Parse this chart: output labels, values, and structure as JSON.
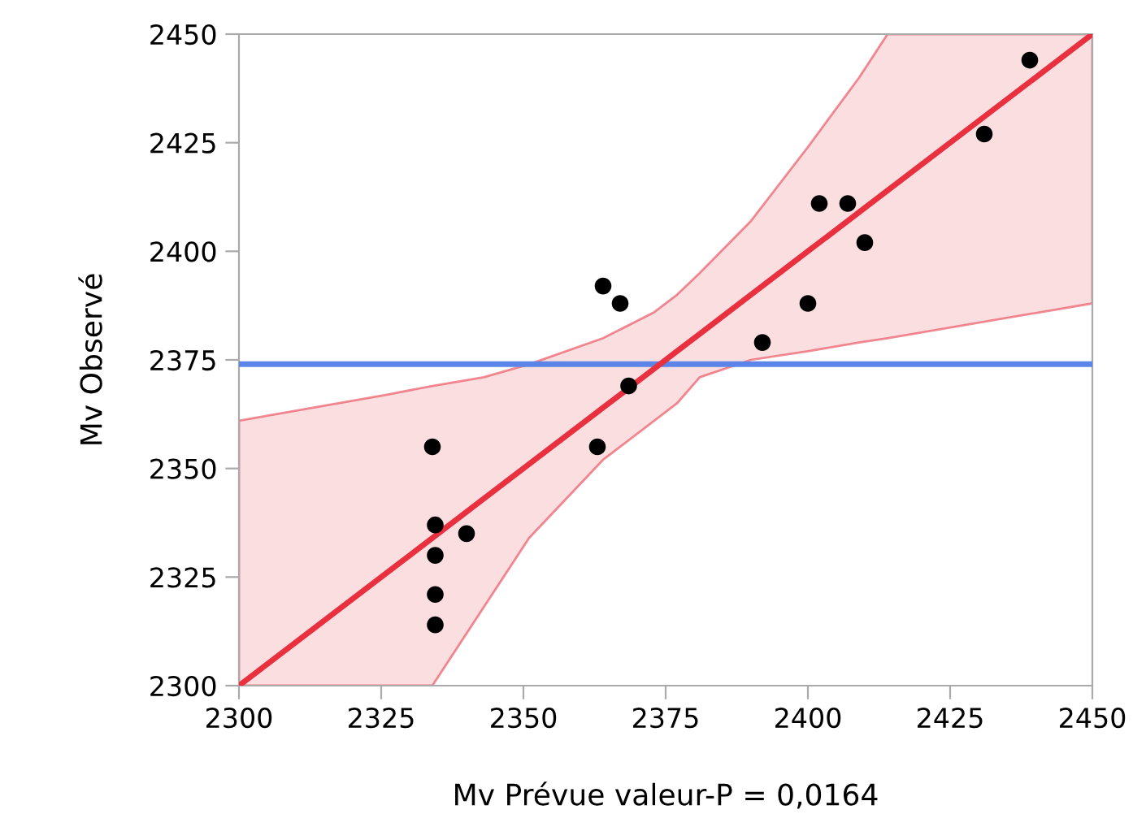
{
  "chart_data": {
    "type": "scatter",
    "xlabel": "Mv Prévue valeur-P = 0,0164",
    "ylabel": "Mv Observé",
    "xlim": [
      2300,
      2450
    ],
    "ylim": [
      2300,
      2450
    ],
    "xticks": [
      2300,
      2325,
      2350,
      2375,
      2400,
      2425,
      2450
    ],
    "yticks": [
      2300,
      2325,
      2350,
      2375,
      2400,
      2425,
      2450
    ],
    "grid": false,
    "ref_lines": [
      {
        "axis": "y",
        "value": 2374,
        "color": "#5b85e8"
      }
    ],
    "series": [
      {
        "color": "#000000",
        "marker": "circle",
        "x": [
          2431,
          2439,
          2402,
          2407,
          2410,
          2400,
          2392,
          2364,
          2367,
          2368.5,
          2363,
          2334,
          2334.5,
          2340,
          2334.5,
          2334.5,
          2334.5
        ],
        "values": [
          2427,
          2444,
          2411,
          2411,
          2402,
          2388,
          2379,
          2392,
          2388,
          2369,
          2355,
          2355,
          2337,
          2335,
          2330,
          2321,
          2314
        ]
      },
      {
        "type": "line",
        "color": "#e8303f",
        "x": [
          2300,
          2326,
          2334,
          2343,
          2351,
          2364,
          2373,
          2377,
          2381,
          2390,
          2400,
          2409,
          2414,
          2450
        ],
        "values": [
          2300,
          2326,
          2334,
          2343,
          2351,
          2364,
          2373,
          2377,
          2381,
          2390,
          2400,
          2409,
          2414,
          2450
        ],
        "lower": [
          2300,
          2300,
          2300,
          2318,
          2334,
          2352,
          2361,
          2365,
          2371,
          2375,
          2377,
          2379,
          2380,
          2388
        ],
        "upper": [
          2361,
          2367,
          2369,
          2371,
          2374,
          2380,
          2386,
          2390,
          2395,
          2407,
          2424,
          2440,
          2450,
          2450
        ]
      }
    ]
  }
}
